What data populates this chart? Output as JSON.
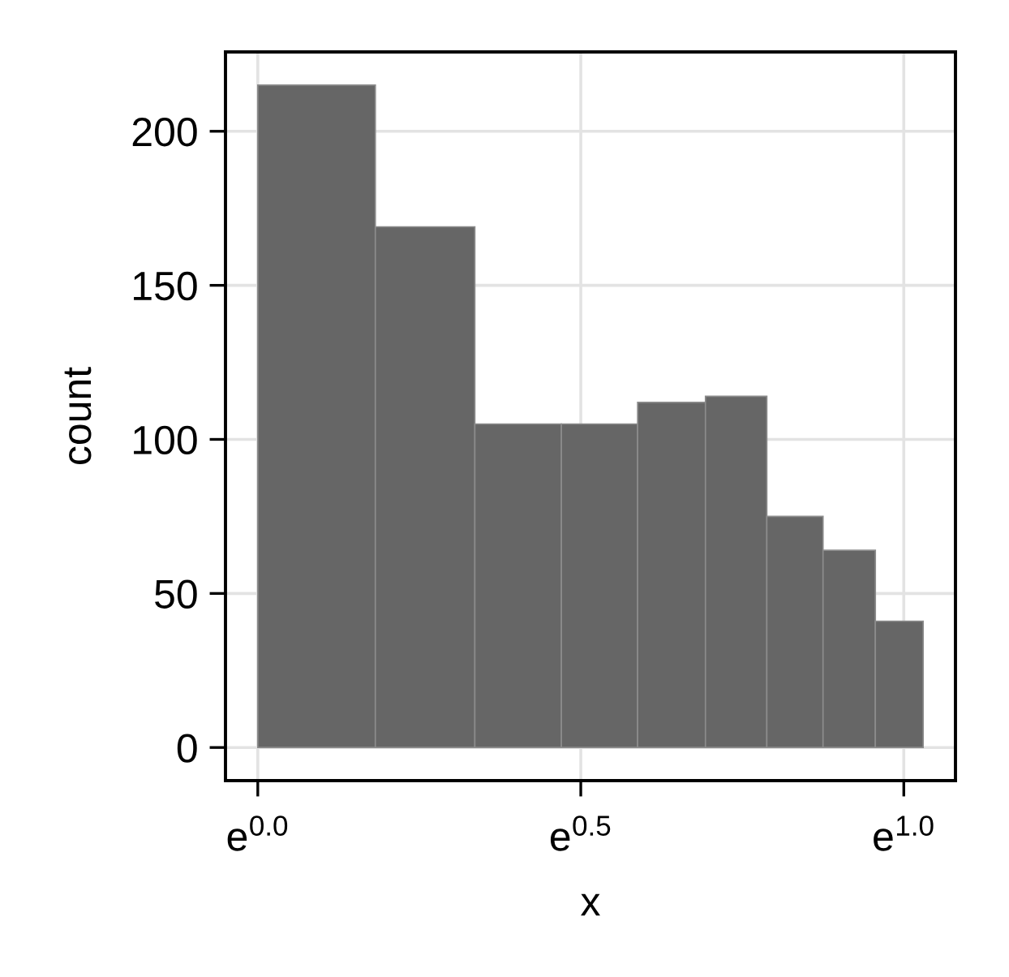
{
  "chart_data": {
    "type": "histogram",
    "xlabel": "x",
    "ylabel": "count",
    "bins": [
      0,
      0.182,
      0.336,
      0.47,
      0.588,
      0.693,
      0.788,
      0.875,
      0.956,
      1.03
    ],
    "values": [
      215,
      169,
      105,
      105,
      112,
      114,
      75,
      64,
      41
    ],
    "color": "#666666",
    "xlim": [
      -0.05,
      1.08
    ],
    "xticks": [
      {
        "value": 0,
        "label": "e$^{0.0}$"
      },
      {
        "value": 0.5,
        "label": "e$^{0.5}$"
      },
      {
        "value": 1,
        "label": "e$^{1.0}$"
      }
    ],
    "ylim": [
      -10.75,
      225.75
    ],
    "yticks": [
      0,
      50,
      100,
      150,
      200
    ],
    "grid": true
  }
}
